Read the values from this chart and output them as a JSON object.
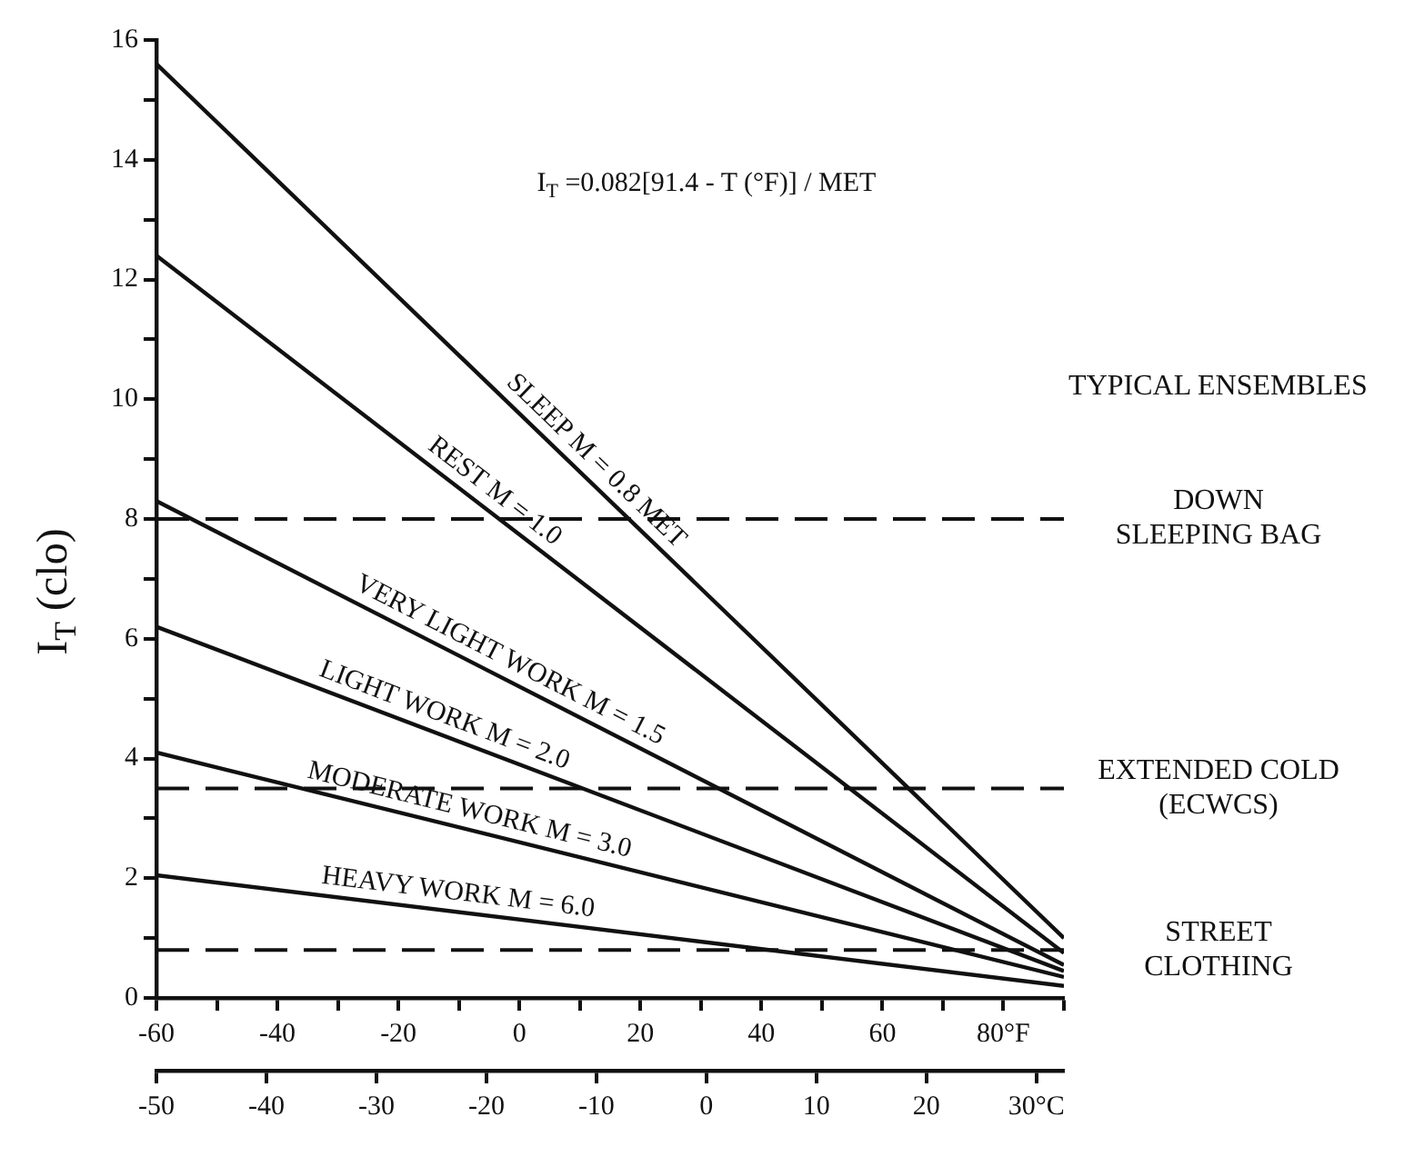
{
  "chart_data": {
    "type": "line",
    "ylabel": "I$_{T}$ (clo)",
    "x": [
      -60,
      90
    ],
    "series": [
      {
        "name": "SLEEP M = 0.8 MET",
        "color": "#111111",
        "values": [
          15.6,
          1.0
        ]
      },
      {
        "name": "REST M = 1.0",
        "color": "#111111",
        "values": [
          12.4,
          0.75
        ]
      },
      {
        "name": "VERY LIGHT WORK M = 1.5",
        "color": "#111111",
        "values": [
          8.3,
          0.55
        ]
      },
      {
        "name": "LIGHT WORK M = 2.0",
        "color": "#111111",
        "values": [
          6.2,
          0.45
        ]
      },
      {
        "name": "MODERATE WORK M = 3.0",
        "color": "#111111",
        "values": [
          4.1,
          0.35
        ]
      },
      {
        "name": "HEAVY WORK M = 6.0",
        "color": "#111111",
        "values": [
          2.05,
          0.2
        ]
      }
    ],
    "xlim": [
      -60,
      90
    ],
    "xticks": [
      -60,
      {
        "value": -50,
        "label": null
      },
      -40,
      {
        "value": -30,
        "label": null
      },
      -20,
      {
        "value": -10,
        "label": null
      },
      0,
      {
        "value": 10,
        "label": null
      },
      20,
      {
        "value": 30,
        "label": null
      },
      40,
      {
        "value": 50,
        "label": null
      },
      60,
      {
        "value": 70,
        "label": null
      },
      {
        "value": 80,
        "label": "80°F"
      },
      {
        "value": 90,
        "label": null
      }
    ],
    "x2lim": [
      -50,
      32.5
    ],
    "x2ticks": [
      -50,
      -40,
      -30,
      -20,
      -10,
      0,
      10,
      20,
      {
        "value": 30,
        "label": "30°C"
      }
    ],
    "ylim": [
      0,
      16
    ],
    "yticks": [
      0,
      {
        "value": 1,
        "label": null
      },
      2,
      {
        "value": 3,
        "label": null
      },
      4,
      {
        "value": 5,
        "label": null
      },
      6,
      {
        "value": 7,
        "label": null
      },
      8,
      {
        "value": 9,
        "label": null
      },
      10,
      {
        "value": 11,
        "label": null
      },
      12,
      {
        "value": 13,
        "label": null
      },
      14,
      {
        "value": 15,
        "label": null
      },
      16
    ],
    "ref_lines": [
      {
        "axis": "y",
        "value": 8,
        "label": "DOWN\nSLEEPING BAG",
        "line_style": "dashed",
        "color": "#111111"
      },
      {
        "axis": "y",
        "value": 3.5,
        "label": "EXTENDED COLD\n(ECWCS)",
        "line_style": "dashed",
        "color": "#111111"
      },
      {
        "axis": "y",
        "value": 0.8,
        "label": "STREET\nCLOTHING",
        "line_style": "dashed",
        "color": "#111111"
      }
    ],
    "annotations": [
      "I$_{T}$ =0.082[91.4 - T (°F)] / MET",
      "TYPICAL ENSEMBLES"
    ],
    "grid": false,
    "legend": false,
    "marker": "none",
    "line_style": "solid"
  }
}
